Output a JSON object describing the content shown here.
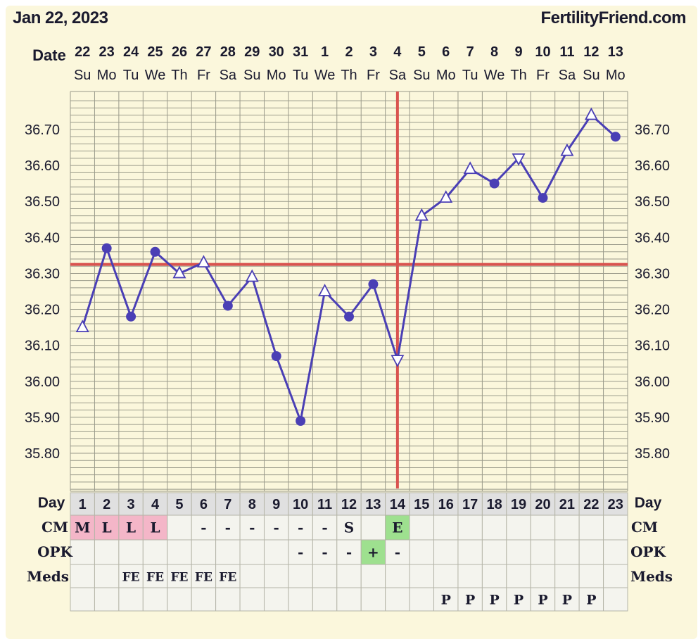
{
  "header": {
    "date": "Jan 22, 2023",
    "brand": "FertilityFriend.com"
  },
  "row_labels": {
    "date": "Date",
    "day": "Day",
    "cm": "CM",
    "opk": "OPK",
    "meds": "Meds"
  },
  "colors": {
    "background": "#fbf7dc",
    "line": "#4a3fb5",
    "coverline": "#d9534f",
    "grid": "#9a9a8a",
    "day_cell": "#e0e0e0",
    "cell": "#f4f4ee",
    "menstruation": "#f4b6c8",
    "fertile": "#9ee08f"
  },
  "chart_data": {
    "type": "line",
    "title": "",
    "xlabel": "",
    "ylabel": "",
    "ylim": [
      35.7,
      36.8
    ],
    "yticks": [
      "36.70",
      "36.60",
      "36.50",
      "36.40",
      "36.30",
      "36.20",
      "36.10",
      "36.00",
      "35.90",
      "35.80"
    ],
    "ytick_values": [
      36.7,
      36.6,
      36.5,
      36.4,
      36.3,
      36.2,
      36.1,
      36.0,
      35.9,
      35.8
    ],
    "dates": [
      "22",
      "23",
      "24",
      "25",
      "26",
      "27",
      "28",
      "29",
      "30",
      "31",
      "1",
      "2",
      "3",
      "4",
      "5",
      "6",
      "7",
      "8",
      "9",
      "10",
      "11",
      "12",
      "13"
    ],
    "weekdays": [
      "Su",
      "Mo",
      "Tu",
      "We",
      "Th",
      "Fr",
      "Sa",
      "Su",
      "Mo",
      "Tu",
      "We",
      "Th",
      "Fr",
      "Sa",
      "Su",
      "Mo",
      "Tu",
      "We",
      "Th",
      "Fr",
      "Sa",
      "Su",
      "Mo"
    ],
    "cycle_days": [
      "1",
      "2",
      "3",
      "4",
      "5",
      "6",
      "7",
      "8",
      "9",
      "10",
      "11",
      "12",
      "13",
      "14",
      "15",
      "16",
      "17",
      "18",
      "19",
      "20",
      "21",
      "22",
      "23"
    ],
    "temperatures": [
      36.15,
      36.37,
      36.18,
      36.36,
      36.3,
      36.33,
      36.21,
      36.29,
      36.07,
      35.89,
      36.25,
      36.18,
      36.27,
      36.06,
      36.46,
      36.51,
      36.59,
      36.55,
      36.62,
      36.51,
      36.64,
      36.74,
      36.68
    ],
    "markers": [
      "tri-up",
      "dot",
      "dot",
      "dot",
      "tri-up",
      "tri-up",
      "dot",
      "tri-up",
      "dot",
      "dot",
      "tri-up",
      "dot",
      "dot",
      "tri-down",
      "tri-up",
      "tri-up",
      "tri-up",
      "dot",
      "tri-down",
      "dot",
      "tri-up",
      "tri-up",
      "dot"
    ],
    "coverline": 36.325,
    "ovulation_day": 14,
    "cm": [
      "M",
      "L",
      "L",
      "L",
      "",
      "-",
      "-",
      "-",
      "-",
      "-",
      "-",
      "S",
      "",
      "E",
      "",
      "",
      "",
      "",
      "",
      "",
      "",
      "",
      ""
    ],
    "cm_colors": [
      "pink",
      "pink",
      "pink",
      "pink",
      "",
      "",
      "",
      "",
      "",
      "",
      "",
      "",
      "",
      "green",
      "",
      "",
      "",
      "",
      "",
      "",
      "",
      "",
      ""
    ],
    "opk": [
      "",
      "",
      "",
      "",
      "",
      "",
      "",
      "",
      "",
      "-",
      "-",
      "-",
      "+",
      "-",
      "",
      "",
      "",
      "",
      "",
      "",
      "",
      "",
      ""
    ],
    "opk_colors": [
      "",
      "",
      "",
      "",
      "",
      "",
      "",
      "",
      "",
      "",
      "",
      "",
      "green",
      "",
      "",
      "",
      "",
      "",
      "",
      "",
      "",
      "",
      ""
    ],
    "meds": [
      "",
      "",
      "FE",
      "FE",
      "FE",
      "FE",
      "FE",
      "",
      "",
      "",
      "",
      "",
      "",
      "",
      "",
      "",
      "",
      "",
      "",
      "",
      "",
      "",
      ""
    ],
    "meds2": [
      "",
      "",
      "",
      "",
      "",
      "",
      "",
      "",
      "",
      "",
      "",
      "",
      "",
      "",
      "",
      "P",
      "P",
      "P",
      "P",
      "P",
      "P",
      "P",
      ""
    ]
  }
}
